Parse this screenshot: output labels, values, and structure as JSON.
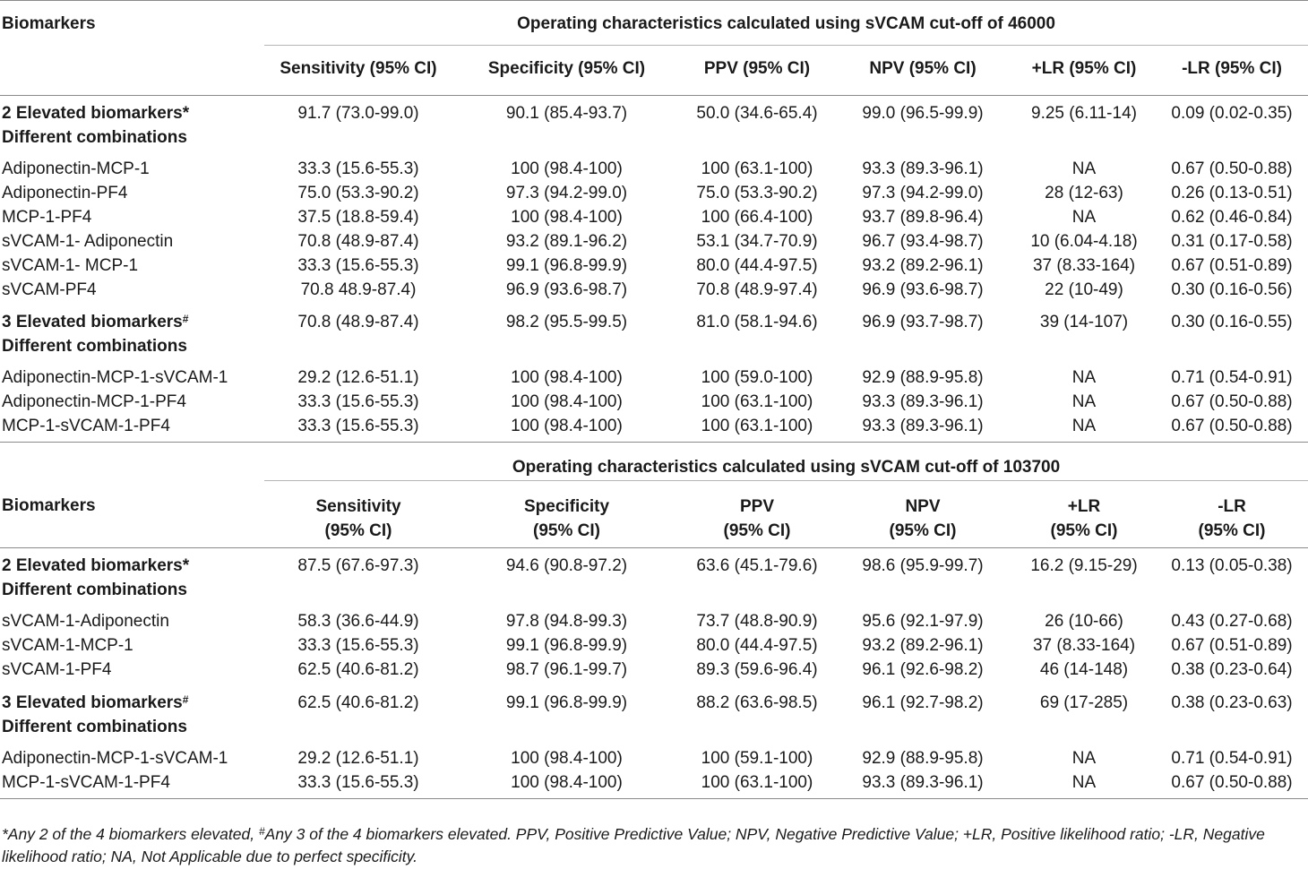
{
  "table": {
    "top_header": {
      "biomarkers": "Biomarkers",
      "section1_title": "Operating characteristics calculated using sVCAM cut-off of 46000",
      "columns": [
        "Sensitivity (95% CI)",
        "Specificity (95% CI)",
        "PPV (95% CI)",
        "NPV (95% CI)",
        "+LR (95% CI)",
        "-LR (95% CI)"
      ]
    },
    "section1": {
      "group2": {
        "label": "2 Elevated biomarkers*",
        "sublabel": "Different combinations",
        "values": [
          "91.7 (73.0-99.0)",
          "90.1 (85.4-93.7)",
          "50.0 (34.6-65.4)",
          "99.0 (96.5-99.9)",
          "9.25 (6.11-14)",
          "0.09 (0.02-0.35)"
        ]
      },
      "group2_rows": [
        {
          "label": "Adiponectin-MCP-1",
          "values": [
            "33.3 (15.6-55.3)",
            "100 (98.4-100)",
            "100 (63.1-100)",
            "93.3 (89.3-96.1)",
            "NA",
            "0.67 (0.50-0.88)"
          ]
        },
        {
          "label": "Adiponectin-PF4",
          "values": [
            "75.0 (53.3-90.2)",
            "97.3 (94.2-99.0)",
            "75.0 (53.3-90.2)",
            "97.3 (94.2-99.0)",
            "28 (12-63)",
            "0.26 (0.13-0.51)"
          ]
        },
        {
          "label": "MCP-1-PF4",
          "values": [
            "37.5 (18.8-59.4)",
            "100 (98.4-100)",
            "100 (66.4-100)",
            "93.7 (89.8-96.4)",
            "NA",
            "0.62 (0.46-0.84)"
          ]
        },
        {
          "label": "sVCAM-1- Adiponectin",
          "values": [
            "70.8 (48.9-87.4)",
            "93.2 (89.1-96.2)",
            "53.1 (34.7-70.9)",
            "96.7 (93.4-98.7)",
            "10 (6.04-4.18)",
            "0.31 (0.17-0.58)"
          ]
        },
        {
          "label": "sVCAM-1- MCP-1",
          "values": [
            "33.3 (15.6-55.3)",
            "99.1 (96.8-99.9)",
            "80.0 (44.4-97.5)",
            "93.2 (89.2-96.1)",
            "37 (8.33-164)",
            "0.67 (0.51-0.89)"
          ]
        },
        {
          "label": "sVCAM-PF4",
          "values": [
            "70.8 48.9-87.4)",
            "96.9 (93.6-98.7)",
            "70.8 (48.9-97.4)",
            "96.9 (93.6-98.7)",
            "22 (10-49)",
            "0.30 (0.16-0.56)"
          ]
        }
      ],
      "group3": {
        "label": "3 Elevated biomarkers",
        "sup": "#",
        "sublabel": "Different combinations",
        "values": [
          "70.8 (48.9-87.4)",
          "98.2 (95.5-99.5)",
          "81.0 (58.1-94.6)",
          "96.9 (93.7-98.7)",
          "39 (14-107)",
          "0.30 (0.16-0.55)"
        ]
      },
      "group3_rows": [
        {
          "label": "Adiponectin-MCP-1-sVCAM-1",
          "values": [
            "29.2 (12.6-51.1)",
            "100 (98.4-100)",
            "100 (59.0-100)",
            "92.9 (88.9-95.8)",
            "NA",
            "0.71 (0.54-0.91)"
          ]
        },
        {
          "label": "Adiponectin-MCP-1-PF4",
          "values": [
            "33.3 (15.6-55.3)",
            "100 (98.4-100)",
            "100 (63.1-100)",
            "93.3 (89.3-96.1)",
            "NA",
            "0.67 (0.50-0.88)"
          ]
        },
        {
          "label": "MCP-1-sVCAM-1-PF4",
          "values": [
            "33.3 (15.6-55.3)",
            "100 (98.4-100)",
            "100 (63.1-100)",
            "93.3 (89.3-96.1)",
            "NA",
            "0.67 (0.50-0.88)"
          ]
        }
      ]
    },
    "section2": {
      "title": "Operating characteristics calculated using sVCAM cut-off of 103700",
      "biomarkers": "Biomarkers",
      "columns": [
        {
          "line1": "Sensitivity",
          "line2": "(95% CI)"
        },
        {
          "line1": "Specificity",
          "line2": "(95% CI)"
        },
        {
          "line1": "PPV",
          "line2": "(95% CI)"
        },
        {
          "line1": "NPV",
          "line2": "(95% CI)"
        },
        {
          "line1": "+LR",
          "line2": "(95% CI)"
        },
        {
          "line1": "-LR",
          "line2": "(95% CI)"
        }
      ],
      "group2": {
        "label": "2 Elevated biomarkers*",
        "sublabel": "Different combinations",
        "values": [
          "87.5 (67.6-97.3)",
          "94.6 (90.8-97.2)",
          "63.6 (45.1-79.6)",
          "98.6 (95.9-99.7)",
          "16.2 (9.15-29)",
          "0.13 (0.05-0.38)"
        ]
      },
      "group2_rows": [
        {
          "label": "sVCAM-1-Adiponectin",
          "values": [
            "58.3 (36.6-44.9)",
            "97.8 (94.8-99.3)",
            "73.7 (48.8-90.9)",
            "95.6 (92.1-97.9)",
            "26 (10-66)",
            "0.43 (0.27-0.68)"
          ]
        },
        {
          "label": "sVCAM-1-MCP-1",
          "values": [
            "33.3 (15.6-55.3)",
            "99.1 (96.8-99.9)",
            "80.0 (44.4-97.5)",
            "93.2 (89.2-96.1)",
            "37 (8.33-164)",
            "0.67 (0.51-0.89)"
          ]
        },
        {
          "label": "sVCAM-1-PF4",
          "values": [
            "62.5 (40.6-81.2)",
            "98.7 (96.1-99.7)",
            "89.3 (59.6-96.4)",
            "96.1 (92.6-98.2)",
            "46 (14-148)",
            "0.38 (0.23-0.64)"
          ]
        }
      ],
      "group3": {
        "label": "3 Elevated biomarkers",
        "sup": "#",
        "sublabel": "Different combinations",
        "values": [
          "62.5 (40.6-81.2)",
          "99.1 (96.8-99.9)",
          "88.2 (63.6-98.5)",
          "96.1 (92.7-98.2)",
          "69 (17-285)",
          "0.38 (0.23-0.63)"
        ]
      },
      "group3_rows": [
        {
          "label": "Adiponectin-MCP-1-sVCAM-1",
          "values": [
            "29.2 (12.6-51.1)",
            "100 (98.4-100)",
            "100 (59.1-100)",
            "92.9 (88.9-95.8)",
            "NA",
            "0.71 (0.54-0.91)"
          ]
        },
        {
          "label": "MCP-1-sVCAM-1-PF4",
          "values": [
            "33.3 (15.6-55.3)",
            "100 (98.4-100)",
            "100 (63.1-100)",
            "93.3 (89.3-96.1)",
            "NA",
            "0.67 (0.50-0.88)"
          ]
        }
      ]
    }
  },
  "footnote": {
    "part1": "*Any 2 of the 4 biomarkers elevated, ",
    "sup": "#",
    "part2": "Any 3 of the 4 biomarkers elevated. PPV, Positive Predictive Value; NPV, Negative Predictive Value; +LR, Positive likelihood ratio; -LR, Negative likelihood ratio; NA, Not Applicable due to perfect specificity."
  }
}
